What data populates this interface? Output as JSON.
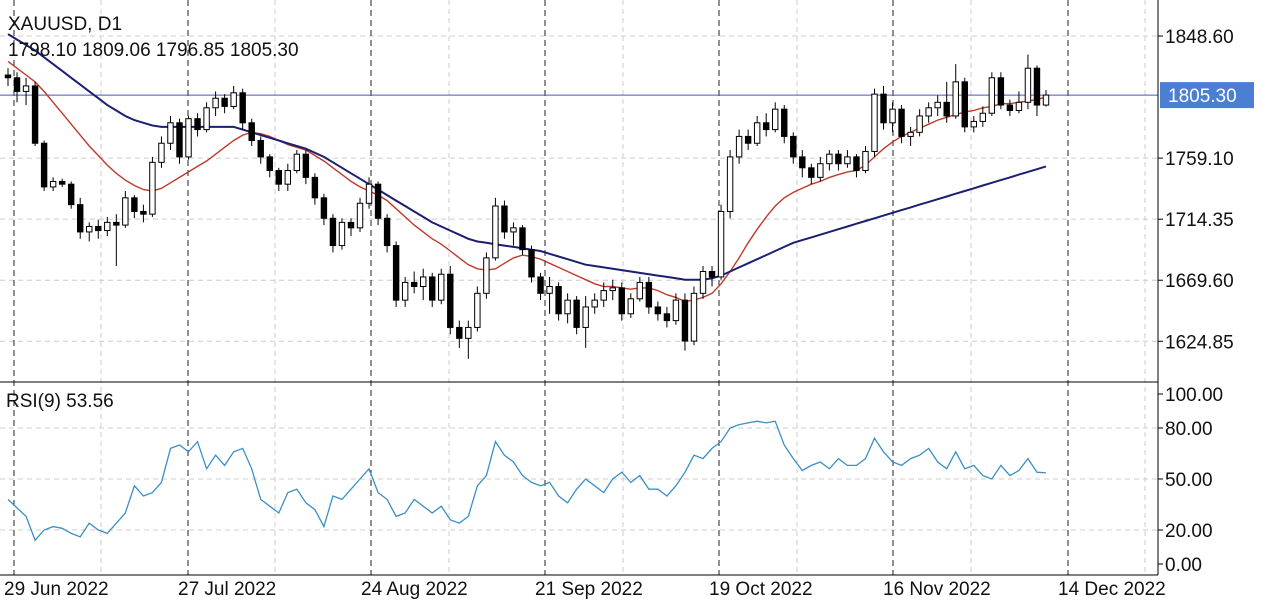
{
  "header": {
    "symbol": "XAUUSD, D1",
    "ohlc": "1798.10 1809.06 1796.85 1805.30"
  },
  "rsi_header": "RSI(9) 53.56",
  "price_axis": {
    "ticks": [
      "1848.60",
      "1759.10",
      "1714.35",
      "1669.60",
      "1624.85"
    ],
    "current_price_label": "1805.30"
  },
  "rsi_axis": {
    "ticks": [
      "100.00",
      "80.00",
      "50.00",
      "20.00",
      "0.00"
    ]
  },
  "date_axis": {
    "ticks": [
      "29 Jun 2022",
      "27 Jul 2022",
      "24 Aug 2022",
      "21 Sep 2022",
      "19 Oct 2022",
      "16 Nov 2022",
      "14 Dec 2022"
    ]
  },
  "colors": {
    "up_candle": "#ffffff",
    "down_candle": "#000000",
    "fast_ma": "#c0392b",
    "slow_ma": "#1a1f71",
    "current_price_line": "#4a56b8",
    "price_tag_bg": "#4a7fd4",
    "rsi_line": "#3b8fc4",
    "grid": "#cccccc"
  },
  "chart_data": [
    {
      "type": "candlestick",
      "title": "XAUUSD, D1",
      "ylim": [
        1595,
        1875
      ],
      "current_price": 1805.3,
      "grid": true,
      "x_start": "2022-06-27",
      "x_end": "2022-12-23",
      "candles": [
        [
          1820,
          1825,
          1812,
          1818
        ],
        [
          1818,
          1822,
          1800,
          1808
        ],
        [
          1808,
          1818,
          1798,
          1812
        ],
        [
          1812,
          1815,
          1768,
          1770
        ],
        [
          1770,
          1772,
          1735,
          1738
        ],
        [
          1738,
          1745,
          1735,
          1742
        ],
        [
          1742,
          1744,
          1738,
          1740
        ],
        [
          1740,
          1742,
          1722,
          1725
        ],
        [
          1725,
          1730,
          1700,
          1705
        ],
        [
          1705,
          1712,
          1698,
          1709
        ],
        [
          1709,
          1714,
          1700,
          1706
        ],
        [
          1706,
          1716,
          1702,
          1712
        ],
        [
          1712,
          1718,
          1680,
          1710
        ],
        [
          1710,
          1735,
          1708,
          1730
        ],
        [
          1730,
          1732,
          1715,
          1720
        ],
        [
          1720,
          1725,
          1712,
          1718
        ],
        [
          1718,
          1760,
          1716,
          1756
        ],
        [
          1756,
          1775,
          1752,
          1770
        ],
        [
          1770,
          1790,
          1765,
          1785
        ],
        [
          1785,
          1788,
          1755,
          1760
        ],
        [
          1760,
          1790,
          1758,
          1788
        ],
        [
          1788,
          1792,
          1775,
          1780
        ],
        [
          1780,
          1800,
          1778,
          1796
        ],
        [
          1796,
          1808,
          1790,
          1803
        ],
        [
          1803,
          1806,
          1792,
          1797
        ],
        [
          1797,
          1812,
          1795,
          1807
        ],
        [
          1807,
          1810,
          1780,
          1785
        ],
        [
          1785,
          1788,
          1768,
          1772
        ],
        [
          1772,
          1775,
          1755,
          1760
        ],
        [
          1760,
          1762,
          1745,
          1750
        ],
        [
          1750,
          1752,
          1735,
          1740
        ],
        [
          1740,
          1755,
          1735,
          1750
        ],
        [
          1750,
          1765,
          1748,
          1762
        ],
        [
          1762,
          1765,
          1740,
          1745
        ],
        [
          1745,
          1748,
          1725,
          1730
        ],
        [
          1730,
          1733,
          1710,
          1715
        ],
        [
          1715,
          1718,
          1690,
          1695
        ],
        [
          1695,
          1715,
          1692,
          1712
        ],
        [
          1712,
          1715,
          1702,
          1708
        ],
        [
          1708,
          1730,
          1705,
          1726
        ],
        [
          1726,
          1745,
          1722,
          1740
        ],
        [
          1740,
          1742,
          1710,
          1715
        ],
        [
          1715,
          1718,
          1690,
          1695
        ],
        [
          1695,
          1698,
          1650,
          1655
        ],
        [
          1655,
          1672,
          1650,
          1668
        ],
        [
          1668,
          1676,
          1660,
          1665
        ],
        [
          1665,
          1678,
          1655,
          1672
        ],
        [
          1672,
          1675,
          1650,
          1655
        ],
        [
          1655,
          1678,
          1652,
          1674
        ],
        [
          1674,
          1680,
          1630,
          1635
        ],
        [
          1635,
          1640,
          1620,
          1627
        ],
        [
          1627,
          1640,
          1612,
          1635
        ],
        [
          1635,
          1665,
          1632,
          1660
        ],
        [
          1660,
          1690,
          1656,
          1686
        ],
        [
          1686,
          1730,
          1684,
          1724
        ],
        [
          1724,
          1728,
          1700,
          1705
        ],
        [
          1705,
          1712,
          1695,
          1708
        ],
        [
          1708,
          1710,
          1688,
          1692
        ],
        [
          1692,
          1695,
          1668,
          1672
        ],
        [
          1672,
          1675,
          1655,
          1660
        ],
        [
          1660,
          1672,
          1645,
          1665
        ],
        [
          1665,
          1668,
          1640,
          1645
        ],
        [
          1645,
          1660,
          1638,
          1655
        ],
        [
          1655,
          1658,
          1630,
          1635
        ],
        [
          1635,
          1658,
          1620,
          1650
        ],
        [
          1650,
          1660,
          1645,
          1655
        ],
        [
          1655,
          1668,
          1650,
          1662
        ],
        [
          1662,
          1670,
          1655,
          1664
        ],
        [
          1664,
          1668,
          1640,
          1645
        ],
        [
          1645,
          1660,
          1642,
          1656
        ],
        [
          1656,
          1672,
          1654,
          1668
        ],
        [
          1668,
          1672,
          1645,
          1650
        ],
        [
          1650,
          1654,
          1640,
          1645
        ],
        [
          1645,
          1650,
          1635,
          1640
        ],
        [
          1640,
          1660,
          1637,
          1655
        ],
        [
          1655,
          1660,
          1618,
          1625
        ],
        [
          1625,
          1665,
          1622,
          1660
        ],
        [
          1660,
          1680,
          1656,
          1676
        ],
        [
          1676,
          1680,
          1665,
          1672
        ],
        [
          1672,
          1725,
          1670,
          1720
        ],
        [
          1720,
          1765,
          1715,
          1760
        ],
        [
          1760,
          1780,
          1755,
          1775
        ],
        [
          1775,
          1780,
          1765,
          1770
        ],
        [
          1770,
          1790,
          1768,
          1785
        ],
        [
          1785,
          1792,
          1775,
          1780
        ],
        [
          1780,
          1800,
          1778,
          1795
        ],
        [
          1795,
          1798,
          1770,
          1775
        ],
        [
          1775,
          1778,
          1755,
          1760
        ],
        [
          1760,
          1765,
          1745,
          1752
        ],
        [
          1752,
          1755,
          1740,
          1745
        ],
        [
          1745,
          1760,
          1742,
          1755
        ],
        [
          1755,
          1765,
          1750,
          1762
        ],
        [
          1762,
          1765,
          1750,
          1755
        ],
        [
          1755,
          1765,
          1752,
          1760
        ],
        [
          1760,
          1762,
          1745,
          1750
        ],
        [
          1750,
          1768,
          1748,
          1764
        ],
        [
          1764,
          1810,
          1760,
          1806
        ],
        [
          1806,
          1812,
          1780,
          1785
        ],
        [
          1785,
          1800,
          1778,
          1795
        ],
        [
          1795,
          1798,
          1770,
          1775
        ],
        [
          1775,
          1782,
          1768,
          1778
        ],
        [
          1778,
          1795,
          1775,
          1790
        ],
        [
          1790,
          1800,
          1785,
          1796
        ],
        [
          1796,
          1805,
          1790,
          1800
        ],
        [
          1800,
          1815,
          1785,
          1790
        ],
        [
          1790,
          1828,
          1788,
          1815
        ],
        [
          1815,
          1818,
          1778,
          1782
        ],
        [
          1782,
          1790,
          1778,
          1786
        ],
        [
          1786,
          1797,
          1782,
          1792
        ],
        [
          1792,
          1822,
          1790,
          1818
        ],
        [
          1818,
          1822,
          1795,
          1798
        ],
        [
          1798,
          1802,
          1790,
          1794
        ],
        [
          1794,
          1808,
          1792,
          1800
        ],
        [
          1800,
          1835,
          1795,
          1825
        ],
        [
          1825,
          1827,
          1790,
          1798
        ],
        [
          1798,
          1809.06,
          1796.85,
          1805.3
        ]
      ],
      "series": [
        {
          "name": "",
          "values": [
            1830,
            1825,
            1820,
            1815,
            1808,
            1800,
            1792,
            1784,
            1776,
            1768,
            1761,
            1754,
            1748,
            1743,
            1739,
            1736,
            1735,
            1737,
            1741,
            1745,
            1749,
            1753,
            1757,
            1762,
            1767,
            1772,
            1776,
            1778,
            1777,
            1775,
            1772,
            1769,
            1767,
            1765,
            1761,
            1757,
            1752,
            1747,
            1742,
            1738,
            1735,
            1732,
            1728,
            1722,
            1716,
            1710,
            1705,
            1700,
            1696,
            1691,
            1686,
            1681,
            1678,
            1677,
            1678,
            1682,
            1686,
            1688,
            1687,
            1685,
            1682,
            1679,
            1676,
            1673,
            1670,
            1667,
            1665,
            1665,
            1664,
            1663,
            1664,
            1664,
            1662,
            1659,
            1657,
            1654,
            1655,
            1657,
            1660,
            1667,
            1676,
            1686,
            1697,
            1707,
            1716,
            1724,
            1730,
            1734,
            1737,
            1740,
            1742,
            1745,
            1747,
            1749,
            1750,
            1754,
            1760,
            1766,
            1771,
            1775,
            1778,
            1781,
            1784,
            1787,
            1789,
            1791,
            1793,
            1794,
            1796,
            1797,
            1799,
            1799,
            1800,
            1801,
            1802,
            1804
          ]
        },
        {
          "name": "",
          "values": [
            1850,
            1846,
            1842,
            1838,
            1833,
            1828,
            1823,
            1818,
            1813,
            1808,
            1803,
            1798,
            1794,
            1790,
            1787,
            1785,
            1783,
            1782,
            1782,
            1782,
            1782,
            1782,
            1782,
            1782,
            1782,
            1782,
            1780,
            1778,
            1776,
            1774,
            1772,
            1770,
            1768,
            1766,
            1763,
            1760,
            1756,
            1752,
            1748,
            1744,
            1740,
            1736,
            1732,
            1728,
            1724,
            1720,
            1716,
            1712,
            1709,
            1706,
            1703,
            1700,
            1698,
            1697,
            1696,
            1695,
            1694,
            1693,
            1692,
            1691,
            1689,
            1687,
            1685,
            1683,
            1681,
            1680,
            1679,
            1678,
            1677,
            1676,
            1675,
            1674,
            1673,
            1672,
            1671,
            1670,
            1670,
            1670,
            1671,
            1673,
            1676,
            1679,
            1682,
            1685,
            1688,
            1691,
            1694,
            1697,
            1699,
            1701,
            1703,
            1705,
            1707,
            1709,
            1711,
            1713,
            1715,
            1717,
            1719,
            1721,
            1723,
            1725,
            1727,
            1729,
            1731,
            1733,
            1735,
            1737,
            1739,
            1741,
            1743,
            1745,
            1747,
            1749,
            1751,
            1753
          ]
        }
      ]
    },
    {
      "type": "line",
      "title": "RSI(9) 53.56",
      "ylim": [
        0,
        100
      ],
      "grid": true,
      "series": [
        {
          "name": "RSI(9)",
          "values": [
            38,
            33,
            28,
            14,
            20,
            22,
            21,
            18,
            16,
            24,
            20,
            18,
            24,
            30,
            46,
            40,
            42,
            48,
            68,
            70,
            66,
            72,
            56,
            64,
            58,
            66,
            68,
            56,
            38,
            34,
            30,
            42,
            44,
            36,
            32,
            22,
            40,
            38,
            44,
            50,
            56,
            42,
            38,
            28,
            30,
            38,
            34,
            30,
            34,
            26,
            24,
            28,
            46,
            52,
            72,
            64,
            60,
            52,
            48,
            46,
            48,
            40,
            36,
            44,
            50,
            46,
            42,
            50,
            54,
            48,
            52,
            44,
            44,
            40,
            46,
            54,
            64,
            62,
            68,
            72,
            80,
            82,
            83,
            84,
            83,
            84,
            70,
            62,
            55,
            58,
            60,
            56,
            62,
            58,
            58,
            62,
            74,
            66,
            60,
            58,
            62,
            64,
            68,
            60,
            56,
            66,
            56,
            58,
            52,
            50,
            58,
            52,
            55,
            62,
            54,
            53.56
          ]
        }
      ]
    }
  ]
}
